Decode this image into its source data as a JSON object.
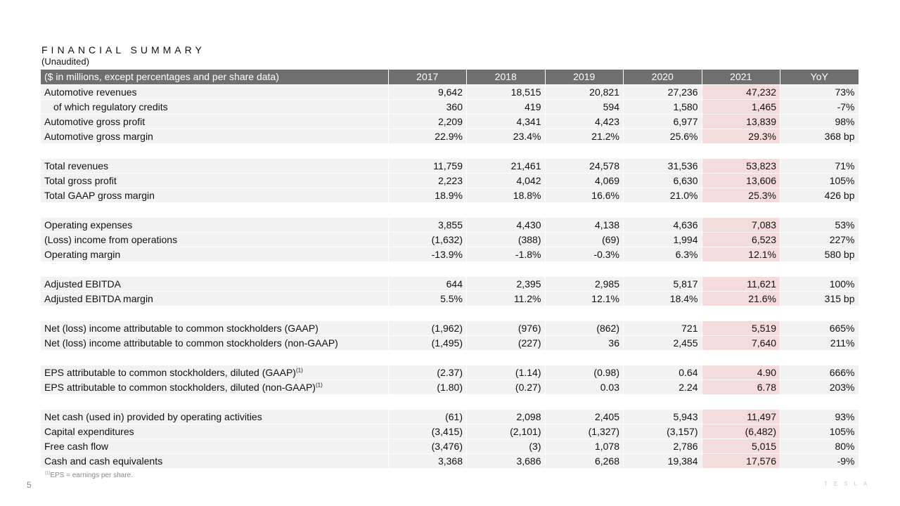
{
  "header": {
    "title": "FINANCIAL SUMMARY",
    "subtitle": "(Unaudited)"
  },
  "table": {
    "columns": [
      "($ in millions, except percentages and per share data)",
      "2017",
      "2018",
      "2019",
      "2020",
      "2021",
      "YoY"
    ],
    "rows": [
      {
        "label": "Automotive revenues",
        "values": [
          "9,642",
          "18,515",
          "20,821",
          "27,236",
          "47,232",
          "73%"
        ]
      },
      {
        "label": "of which regulatory credits",
        "indent": true,
        "values": [
          "360",
          "419",
          "594",
          "1,580",
          "1,465",
          "-7%"
        ]
      },
      {
        "label": "Automotive gross profit",
        "values": [
          "2,209",
          "4,341",
          "4,423",
          "6,977",
          "13,839",
          "98%"
        ]
      },
      {
        "label": "Automotive gross margin",
        "values": [
          "22.9%",
          "23.4%",
          "21.2%",
          "25.6%",
          "29.3%",
          "368 bp"
        ]
      },
      {
        "spacer": true
      },
      {
        "label": "Total revenues",
        "values": [
          "11,759",
          "21,461",
          "24,578",
          "31,536",
          "53,823",
          "71%"
        ]
      },
      {
        "label": "Total gross profit",
        "values": [
          "2,223",
          "4,042",
          "4,069",
          "6,630",
          "13,606",
          "105%"
        ]
      },
      {
        "label": "Total GAAP gross margin",
        "values": [
          "18.9%",
          "18.8%",
          "16.6%",
          "21.0%",
          "25.3%",
          "426 bp"
        ]
      },
      {
        "spacer": true
      },
      {
        "label": "Operating expenses",
        "values": [
          "3,855",
          "4,430",
          "4,138",
          "4,636",
          "7,083",
          "53%"
        ]
      },
      {
        "label": "(Loss) income from operations",
        "values": [
          "(1,632)",
          "(388)",
          "(69)",
          "1,994",
          "6,523",
          "227%"
        ]
      },
      {
        "label": "Operating margin",
        "values": [
          "-13.9%",
          "-1.8%",
          "-0.3%",
          "6.3%",
          "12.1%",
          "580 bp"
        ]
      },
      {
        "spacer": true
      },
      {
        "label": "Adjusted EBITDA",
        "values": [
          "644",
          "2,395",
          "2,985",
          "5,817",
          "11,621",
          "100%"
        ]
      },
      {
        "label": "Adjusted EBITDA margin",
        "values": [
          "5.5%",
          "11.2%",
          "12.1%",
          "18.4%",
          "21.6%",
          "315 bp"
        ]
      },
      {
        "spacer": true
      },
      {
        "label": "Net (loss) income attributable to common stockholders (GAAP)",
        "values": [
          "(1,962)",
          "(976)",
          "(862)",
          "721",
          "5,519",
          "665%"
        ]
      },
      {
        "label": "Net (loss) income attributable to common stockholders (non-GAAP)",
        "values": [
          "(1,495)",
          "(227)",
          "36",
          "2,455",
          "7,640",
          "211%"
        ]
      },
      {
        "spacer": true
      },
      {
        "label": "EPS attributable to common stockholders, diluted (GAAP)",
        "sup": "(1)",
        "values": [
          "(2.37)",
          "(1.14)",
          "(0.98)",
          "0.64",
          "4.90",
          "666%"
        ]
      },
      {
        "label": "EPS attributable to common stockholders, diluted (non-GAAP)",
        "sup": "(1)",
        "values": [
          "(1.80)",
          "(0.27)",
          "0.03",
          "2.24",
          "6.78",
          "203%"
        ]
      },
      {
        "spacer": true
      },
      {
        "label": "Net cash (used in) provided by operating activities",
        "values": [
          "(61)",
          "2,098",
          "2,405",
          "5,943",
          "11,497",
          "93%"
        ]
      },
      {
        "label": "Capital expenditures",
        "values": [
          "(3,415)",
          "(2,101)",
          "(1,327)",
          "(3,157)",
          "(6,482)",
          "105%"
        ]
      },
      {
        "label": "Free cash flow",
        "values": [
          "(3,476)",
          "(3)",
          "1,078",
          "2,786",
          "5,015",
          "80%"
        ]
      },
      {
        "label": "Cash and cash equivalents",
        "values": [
          "3,368",
          "3,686",
          "6,268",
          "19,384",
          "17,576",
          "-9%"
        ]
      }
    ],
    "highlight_column": "2021",
    "highlight_color": "#f5dcdc",
    "header_color": "#6f6f6f",
    "row_color": "#f2f2f2"
  },
  "footnote": {
    "marker": "(1)",
    "text": "EPS = earnings per share."
  },
  "page_number": "5",
  "logo": "TESLA"
}
